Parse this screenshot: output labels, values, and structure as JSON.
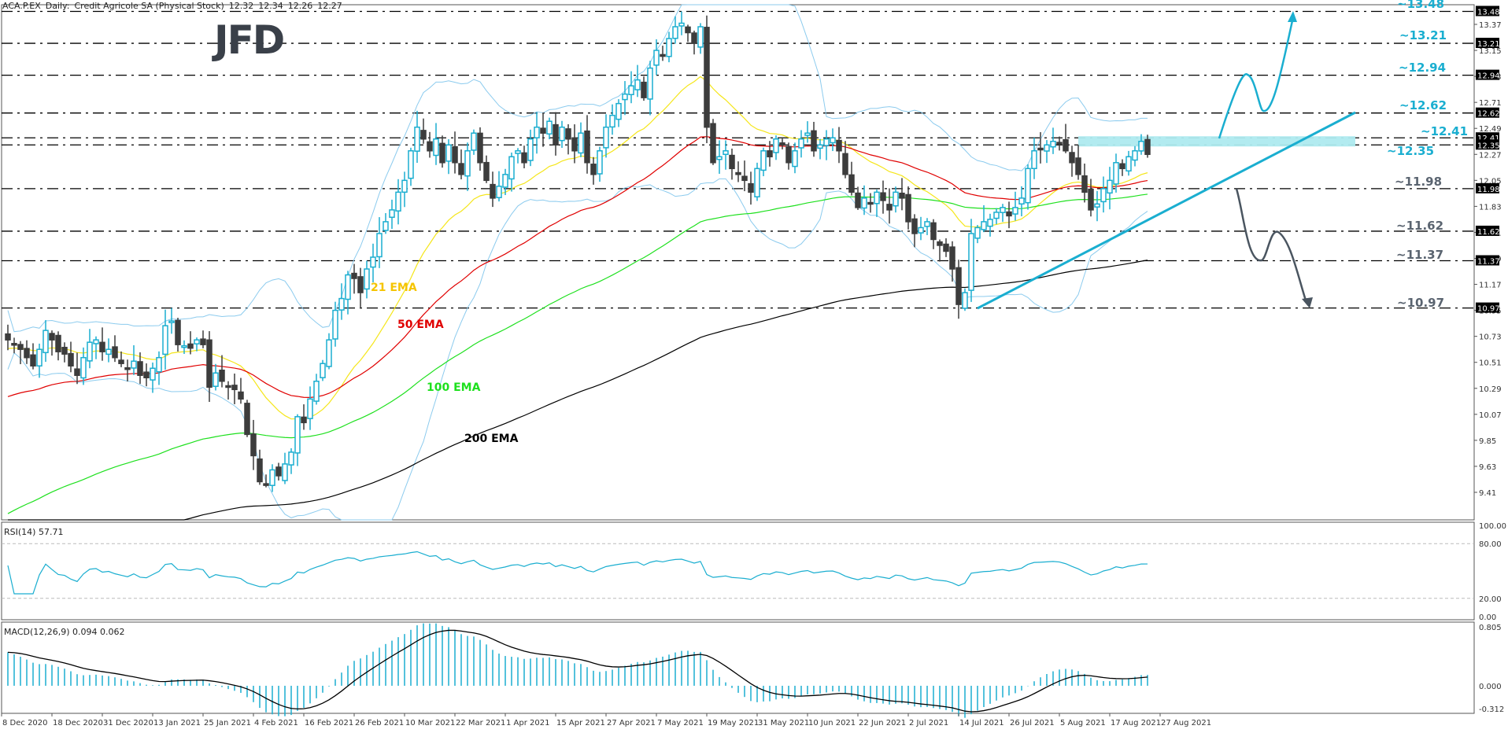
{
  "header": {
    "symbol": "ACA.P.EX",
    "timeframe": "Daily:",
    "instrument": "Credit Agricole SA (Physical Stock)",
    "ohlc": [
      "12.32",
      "12.34",
      "12.26",
      "12.27"
    ]
  },
  "logo": {
    "text": "JFD",
    "color": "#3a4049"
  },
  "colors": {
    "bull_candle": "#1aaed0",
    "bear_candle": "#3c3c3c",
    "ema21": "#f5e61a",
    "ema50": "#e00000",
    "ema100": "#1ee01e",
    "ema200": "#000000",
    "bollinger": "#8ccbee",
    "resistance_zone": "#aeeaef",
    "bull_annotation": "#1aaed0",
    "bear_annotation": "#4a5560",
    "level_line": "#000000",
    "rsi_line": "#1aaed0",
    "macd_hist": "#1aaed0",
    "macd_signal": "#000000"
  },
  "chart_data": [
    {
      "type": "candlestick",
      "title": "ACA.P.EX, Daily: Credit Agricole SA (Physical Stock) 12.32 12.34 12.26 12.27",
      "xlabel": "",
      "ylabel": "",
      "ylim": [
        9.3,
        13.55
      ],
      "grid": false,
      "x_tick_labels": [
        "8 Dec 2020",
        "18 Dec 2020",
        "31 Dec 2020",
        "13 Jan 2021",
        "25 Jan 2021",
        "4 Feb 2021",
        "16 Feb 2021",
        "26 Feb 2021",
        "10 Mar 2021",
        "22 Mar 2021",
        "1 Apr 2021",
        "15 Apr 2021",
        "27 Apr 2021",
        "7 May 2021",
        "19 May 2021",
        "31 May 2021",
        "10 Jun 2021",
        "22 Jun 2021",
        "2 Jul 2021",
        "14 Jul 2021",
        "26 Jul 2021",
        "5 Aug 2021",
        "17 Aug 2021",
        "27 Aug 2021"
      ],
      "y_tick_labels": [
        "13.37",
        "13.15",
        "12.93",
        "12.71",
        "12.49",
        "12.27",
        "12.05",
        "11.83",
        "11.61",
        "11.39",
        "11.17",
        "10.95",
        "10.73",
        "10.51",
        "10.29",
        "10.07",
        "9.85",
        "9.63",
        "9.41"
      ],
      "highlighted_levels": [
        {
          "label": "~13.48",
          "value": 13.48,
          "tag": "13.48",
          "color": "#1aaed0"
        },
        {
          "label": "~13.21",
          "value": 13.21,
          "tag": "13.21",
          "color": "#1aaed0"
        },
        {
          "label": "~12.94",
          "value": 12.94,
          "tag": "12.94",
          "color": "#1aaed0"
        },
        {
          "label": "~12.62",
          "value": 12.62,
          "tag": "12.62",
          "color": "#1aaed0"
        },
        {
          "label": "~12.41",
          "value": 12.41,
          "tag": "12.41",
          "color": "#1aaed0"
        },
        {
          "label": "~12.35",
          "value": 12.35,
          "tag": "12.35",
          "color": "#1aaed0"
        },
        {
          "label": "~11.98",
          "value": 11.98,
          "tag": "11.98",
          "color": "#5a6470"
        },
        {
          "label": "~11.62",
          "value": 11.62,
          "tag": "11.62",
          "color": "#5a6470"
        },
        {
          "label": "~11.37",
          "value": 11.37,
          "tag": "11.37",
          "color": "#5a6470"
        },
        {
          "label": "~10.97",
          "value": 10.97,
          "tag": "10.97",
          "color": "#5a6470"
        }
      ],
      "indicators": [
        {
          "name": "21 EMA",
          "color": "#f5c400"
        },
        {
          "name": "50 EMA",
          "color": "#e00000"
        },
        {
          "name": "100 EMA",
          "color": "#1ee01e"
        },
        {
          "name": "200 EMA",
          "color": "#000000"
        },
        {
          "name": "Bollinger Bands",
          "color": "#8ccbee"
        }
      ],
      "annotations": [
        {
          "type": "resistance_zone",
          "from": 12.35,
          "to": 12.41
        },
        {
          "type": "uptrend_line",
          "from": {
            "date": "14 Jul 2021",
            "price": 10.97
          },
          "to_price": 12.62
        },
        {
          "type": "bullish_path_arrow",
          "targets": [
            12.94,
            12.62,
            13.48
          ]
        },
        {
          "type": "bearish_path_arrow",
          "targets": [
            11.98,
            11.37,
            11.62,
            10.97
          ]
        }
      ],
      "close_series": [
        10.7,
        10.66,
        10.62,
        10.55,
        10.48,
        10.62,
        10.78,
        10.7,
        10.6,
        10.58,
        10.48,
        10.4,
        10.55,
        10.68,
        10.7,
        10.6,
        10.62,
        10.55,
        10.5,
        10.45,
        10.52,
        10.4,
        10.38,
        10.46,
        10.55,
        10.82,
        10.86,
        10.66,
        10.65,
        10.63,
        10.7,
        10.66,
        10.3,
        10.42,
        10.35,
        10.3,
        10.28,
        10.2,
        9.9,
        9.72,
        9.5,
        9.48,
        9.6,
        9.55,
        9.65,
        9.75,
        10.05,
        10.0,
        10.2,
        10.35,
        10.5,
        10.7,
        10.95,
        11.05,
        11.25,
        11.22,
        11.1,
        11.3,
        11.4,
        11.6,
        11.7,
        11.8,
        11.95,
        12.05,
        12.3,
        12.5,
        12.4,
        12.3,
        12.4,
        12.2,
        12.35,
        12.2,
        12.1,
        12.3,
        12.45,
        12.2,
        12.05,
        11.9,
        12.0,
        12.1,
        12.25,
        12.3,
        12.2,
        12.4,
        12.5,
        12.45,
        12.55,
        12.35,
        12.5,
        12.4,
        12.3,
        12.45,
        12.2,
        12.1,
        12.3,
        12.5,
        12.6,
        12.7,
        12.78,
        12.85,
        12.9,
        12.75,
        13.0,
        13.15,
        13.1,
        13.25,
        13.35,
        13.38,
        13.3,
        13.21,
        13.35,
        12.5,
        12.2,
        12.25,
        12.3,
        12.15,
        12.1,
        12.05,
        11.95,
        12.15,
        12.3,
        12.25,
        12.4,
        12.35,
        12.2,
        12.3,
        12.4,
        12.45,
        12.3,
        12.35,
        12.4,
        12.41,
        12.3,
        12.1,
        11.95,
        11.82,
        11.9,
        11.85,
        11.95,
        11.88,
        11.8,
        11.95,
        11.9,
        11.7,
        11.6,
        11.65,
        11.7,
        11.55,
        11.5,
        11.45,
        11.3,
        11.0,
        11.1,
        11.6,
        11.65,
        11.7,
        11.72,
        11.78,
        11.82,
        11.75,
        11.82,
        11.9,
        12.15,
        12.3,
        12.32,
        12.35,
        12.38,
        12.36,
        12.3,
        12.2,
        12.1,
        11.95,
        11.8,
        11.85,
        11.98,
        12.05,
        12.2,
        12.15,
        12.25,
        12.3,
        12.38,
        12.27
      ],
      "series": [
        {
          "name": "RSI(14)",
          "last_value": 57.71,
          "ylim": [
            0,
            100
          ],
          "levels": [
            20,
            80
          ]
        },
        {
          "name": "MACD(12,26,9)",
          "values_shown": [
            0.094,
            0.062
          ],
          "ylim": [
            -0.312,
            0.805
          ]
        }
      ]
    }
  ],
  "rsi": {
    "label": "RSI(14) 57.71",
    "axis": [
      "100.00",
      "80.00",
      "20.00",
      "0.00"
    ]
  },
  "macd": {
    "label": "MACD(12,26,9) 0.094 0.062",
    "axis": [
      "0.805",
      "0.000",
      "-0.312"
    ]
  }
}
